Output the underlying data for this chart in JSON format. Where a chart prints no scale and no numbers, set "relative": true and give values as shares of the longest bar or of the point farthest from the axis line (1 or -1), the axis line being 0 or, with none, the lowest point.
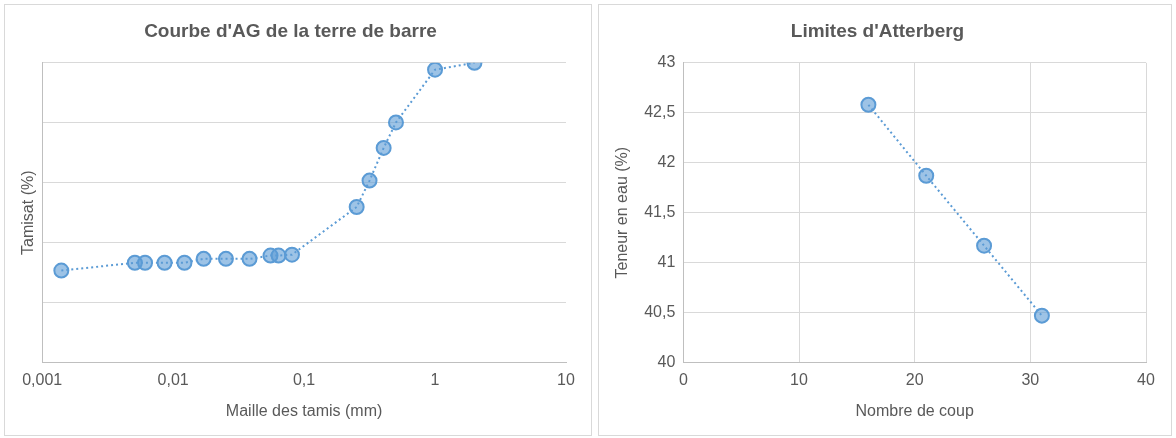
{
  "chart_data": [
    {
      "type": "line",
      "title": "Courbe d'AG de la terre de barre",
      "xlabel": "Maille des tamis (mm)",
      "ylabel": "Tamisat (%)",
      "log": "x",
      "relative": true,
      "tick_labels": "x",
      "grid": "y",
      "legend": false,
      "marker": "circle",
      "line_style": "dotted",
      "xlim": [
        0.001,
        10
      ],
      "xticks": [
        {
          "value": 0.001,
          "label": "0,001"
        },
        {
          "value": 0.01,
          "label": "0,01"
        },
        {
          "value": 0.1,
          "label": "0,1"
        },
        1,
        10
      ],
      "series": [
        {
          "color": "#5b9bd5",
          "x": [
            0.0014,
            0.0051,
            0.0061,
            0.0086,
            0.0122,
            0.0171,
            0.0253,
            0.0383,
            0.0554,
            0.0638,
            0.0808,
            0.252,
            0.316,
            0.405,
            0.503,
            1.0,
            2.0
          ],
          "values": [
            0.307,
            0.333,
            0.333,
            0.333,
            0.333,
            0.346,
            0.346,
            0.346,
            0.357,
            0.357,
            0.36,
            0.519,
            0.607,
            0.716,
            0.801,
            0.977,
            1.0
          ]
        }
      ]
    },
    {
      "type": "line",
      "title": "Limites d'Atterberg",
      "xlabel": "Nombre de coup",
      "ylabel": "Teneur en eau (%)",
      "grid": true,
      "legend": false,
      "marker": "circle",
      "line_style": "dotted",
      "xlim": [
        0,
        40
      ],
      "xticks": [
        0,
        10,
        20,
        30,
        40
      ],
      "ylim": [
        40,
        43
      ],
      "yticks": [
        40,
        {
          "value": 40.5,
          "label": "40,5"
        },
        41,
        {
          "value": 41.5,
          "label": "41,5"
        },
        42,
        {
          "value": 42.5,
          "label": "42,5"
        },
        43
      ],
      "series": [
        {
          "color": "#5b9bd5",
          "x": [
            16,
            21,
            26,
            31
          ],
          "values": [
            42.58,
            41.87,
            41.17,
            40.47
          ]
        }
      ]
    }
  ]
}
